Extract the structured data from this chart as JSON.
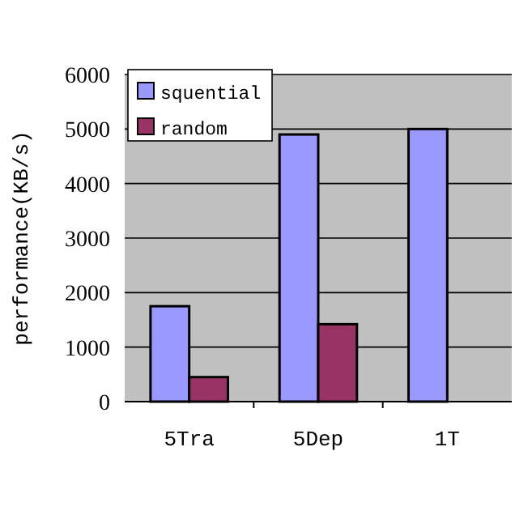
{
  "chart_data": {
    "type": "bar",
    "ylabel": "performance(KB/s)",
    "categories": [
      "5Tra",
      "5Dep",
      "1T"
    ],
    "series": [
      {
        "name": "squential",
        "color": "#9999ff",
        "values": [
          1750,
          4900,
          5000
        ]
      },
      {
        "name": "random",
        "color": "#993366",
        "values": [
          450,
          1420,
          null
        ]
      }
    ],
    "ylim": [
      0,
      6000
    ],
    "yticks": [
      0,
      1000,
      2000,
      3000,
      4000,
      5000,
      6000
    ],
    "grid": "y",
    "legend": "top left"
  }
}
